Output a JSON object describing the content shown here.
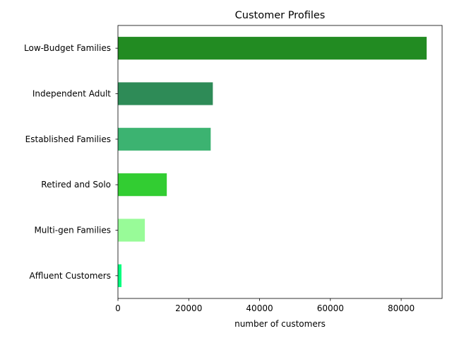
{
  "chart_data": {
    "type": "bar",
    "orientation": "horizontal",
    "title": "Customer Profiles",
    "xlabel": "number of customers",
    "ylabel": "",
    "categories": [
      "Low-Budget Families",
      "Independent Adult",
      "Established Families",
      "Retired and Solo",
      "Multi-gen Families",
      "Affluent Customers"
    ],
    "values": [
      87200,
      26800,
      26200,
      13800,
      7600,
      1000
    ],
    "colors": [
      "#228b22",
      "#2e8b57",
      "#3cb371",
      "#32cd32",
      "#98fb98",
      "#00ff7f"
    ],
    "xlim": [
      0,
      91560
    ],
    "xticks": [
      0,
      20000,
      40000,
      60000,
      80000
    ],
    "xtick_labels": [
      "0",
      "20000",
      "40000",
      "60000",
      "80000"
    ],
    "grid": false,
    "legend": "none"
  }
}
